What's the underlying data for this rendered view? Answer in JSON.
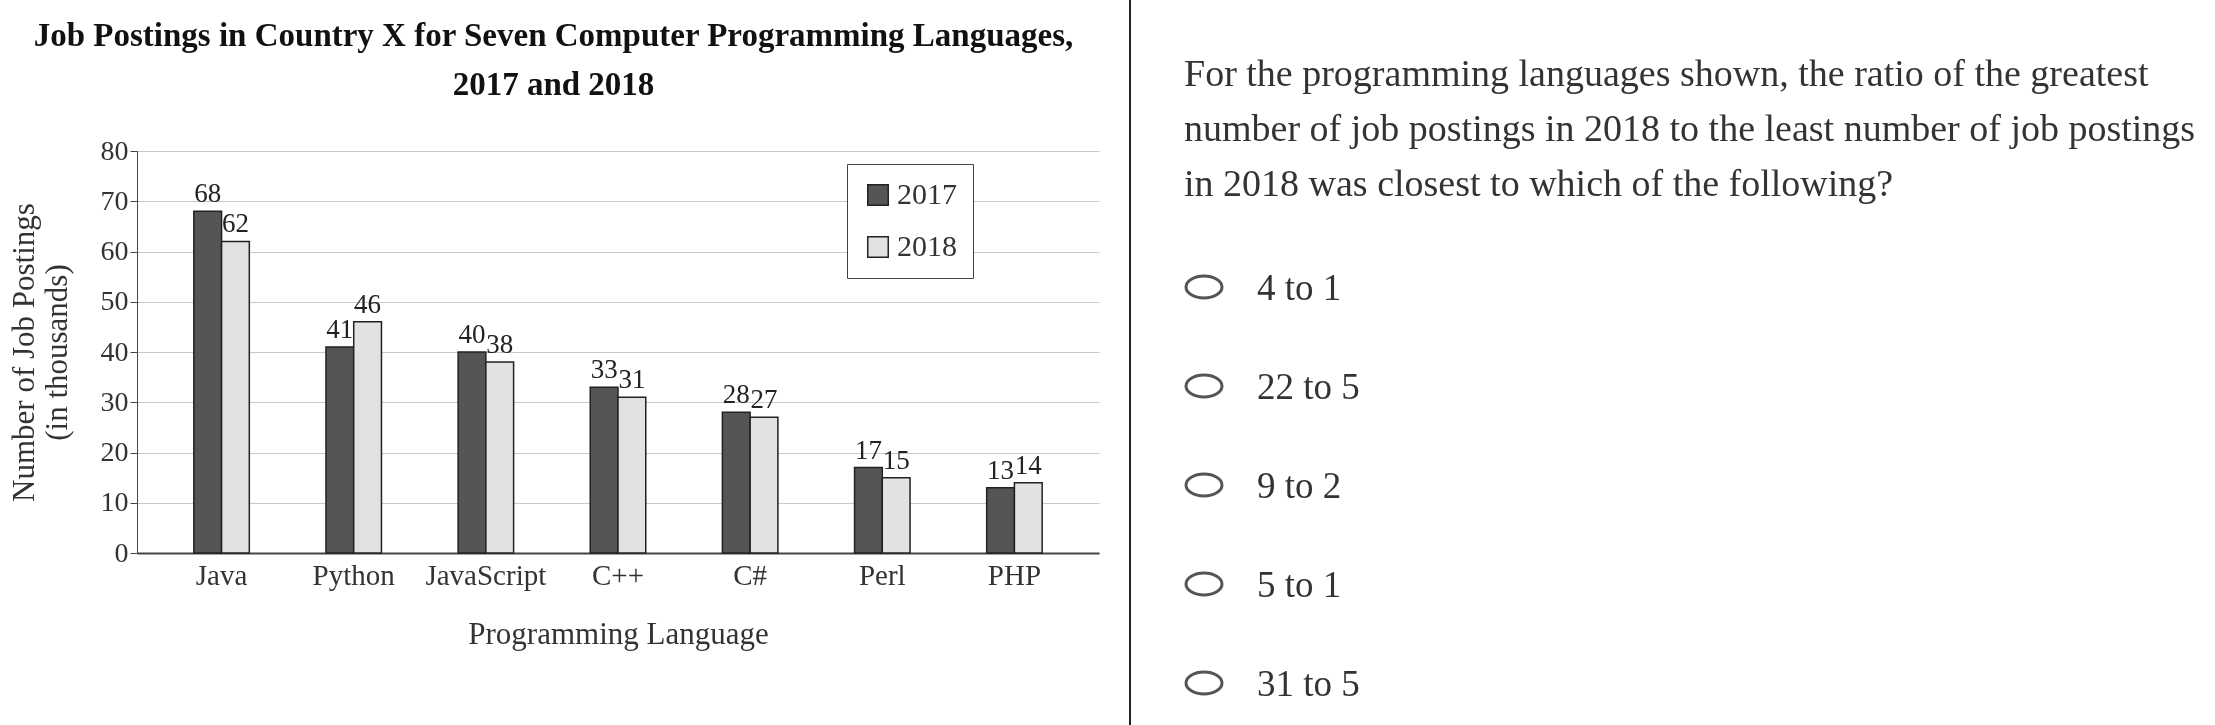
{
  "chart_data": [
    {
      "type": "bar",
      "title": "Job Postings in Country X for Seven Computer Programming Languages,\n2017 and 2018",
      "xlabel": "Programming Language",
      "ylabel": "Number of Job Postings\n(in thousands)",
      "categories": [
        "Java",
        "Python",
        "JavaScript",
        "C++",
        "C#",
        "Perl",
        "PHP"
      ],
      "series": [
        {
          "name": "2017",
          "color": "#555555",
          "values": [
            68,
            41,
            40,
            33,
            28,
            17,
            13
          ]
        },
        {
          "name": "2018",
          "color": "#e2e2e2",
          "values": [
            62,
            46,
            38,
            31,
            27,
            15,
            14
          ]
        }
      ],
      "ylim": [
        0,
        80
      ],
      "yticks": [
        0,
        10,
        20,
        30,
        40,
        50,
        60,
        70,
        80
      ],
      "grid": "y",
      "legend": "top right",
      "data_labels": true
    },
    {
      "type": "other",
      "annotations": [
        "For the programming languages shown, the ratio of the greatest number of job postings in 2018 to the least number of job postings in 2018 was closest to which of the following?",
        "4 to 1",
        "22 to 5",
        "9 to 2",
        "5 to 1",
        "31 to 5"
      ]
    }
  ]
}
